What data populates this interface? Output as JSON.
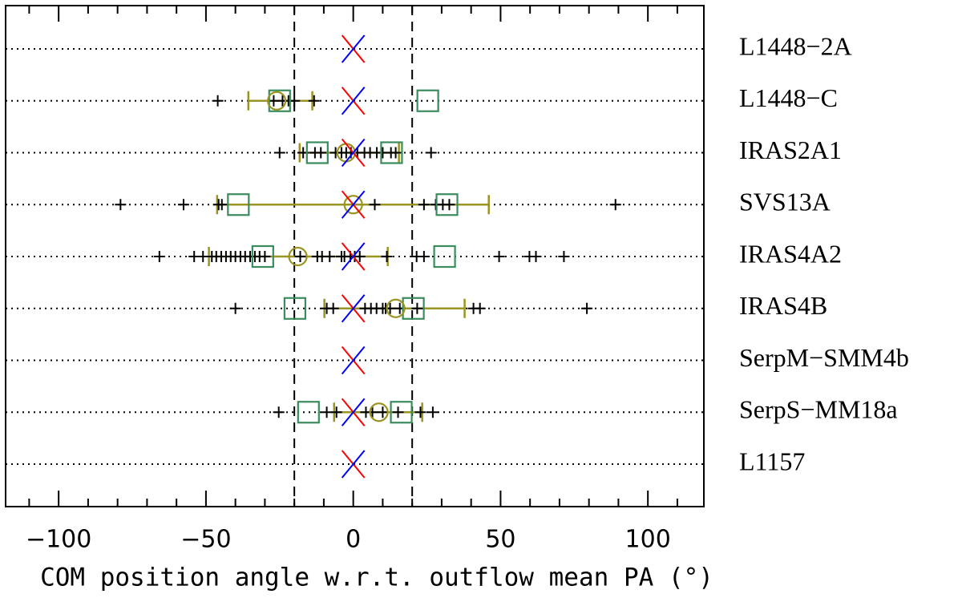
{
  "chart_data": {
    "type": "scatter",
    "xlabel": "COM position angle w.r.t. outflow mean PA (°)",
    "categories": [
      "L1448−2A",
      "L1448−C",
      "IRAS2A1",
      "SVS13A",
      "IRAS4A2",
      "IRAS4B",
      "SerpM−SMM4b",
      "SerpS−MM18a",
      "L1157"
    ],
    "xlim": [
      -118,
      119
    ],
    "xticks": [
      {
        "value": -100,
        "label": "−100"
      },
      {
        "value": -50,
        "label": "−50"
      },
      0,
      50,
      100
    ],
    "xminor": [
      -110,
      -90,
      -80,
      -70,
      -60,
      -40,
      -30,
      -20,
      -10,
      10,
      20,
      30,
      40,
      60,
      70,
      80,
      90,
      110
    ],
    "vlines": [
      -20,
      20
    ],
    "grid": true,
    "crosses": [
      [],
      [
        -46,
        -27,
        -24,
        -22,
        -20,
        -13.3
      ],
      [
        -25,
        -17,
        -13,
        -11,
        -6,
        -4,
        -2.4,
        -0.8,
        1.4,
        3.8,
        5.7,
        8,
        10,
        12.8,
        14.4,
        26.4
      ],
      [
        -79,
        -57.6,
        -45.7,
        -44.6,
        7.3,
        24,
        28,
        30.4,
        32.6,
        89
      ],
      [
        -65.8,
        -54,
        -51,
        -48,
        -46.5,
        -44.8,
        -43.2,
        -41.6,
        -40,
        -38.3,
        -36.7,
        -35,
        -33.4,
        -31.8,
        -30,
        -18,
        -12.2,
        -10.6,
        -8,
        -4,
        -3,
        -1,
        0.5,
        2.2,
        11.4,
        21.5,
        24,
        49.5,
        59.8,
        62,
        71.5
      ],
      [
        -40,
        -9,
        -6.8,
        4,
        6,
        7.9,
        10,
        11,
        12.5,
        15.8,
        21.7,
        40.8,
        43,
        79.3
      ],
      [],
      [
        -25.3,
        -9,
        -5.7,
        4.3,
        6.5,
        10,
        15.2,
        22.8,
        27
      ],
      []
    ],
    "squares": [
      [],
      [
        -25,
        25.3
      ],
      [
        -12.2,
        13
      ],
      [
        -39,
        31.8
      ],
      [
        -30.7,
        31
      ],
      [
        -19.8,
        20.4
      ],
      [],
      [
        -15.2,
        16.3
      ],
      []
    ],
    "circles": [
      null,
      -26,
      -2.4,
      0,
      -18.8,
      14.4,
      null,
      8.7,
      null
    ],
    "errors": [
      null,
      [
        -35.6,
        -13.9
      ],
      [
        -18.2,
        15.5
      ],
      [
        -46.2,
        46
      ],
      [
        -49,
        11.7
      ],
      [
        -9.8,
        37.8
      ],
      null,
      [
        -6.5,
        23.4
      ],
      null
    ],
    "x_red": [
      0,
      0,
      0,
      0,
      0,
      0,
      0,
      0,
      0
    ],
    "x_blue": [
      0,
      0,
      0,
      0,
      0,
      0,
      0,
      0,
      0
    ],
    "colors": {
      "cross": "#000000",
      "square": "#3a8c5c",
      "circle": "#9a9422",
      "x_red": "#ff0000",
      "x_blue": "#0000ff"
    }
  }
}
